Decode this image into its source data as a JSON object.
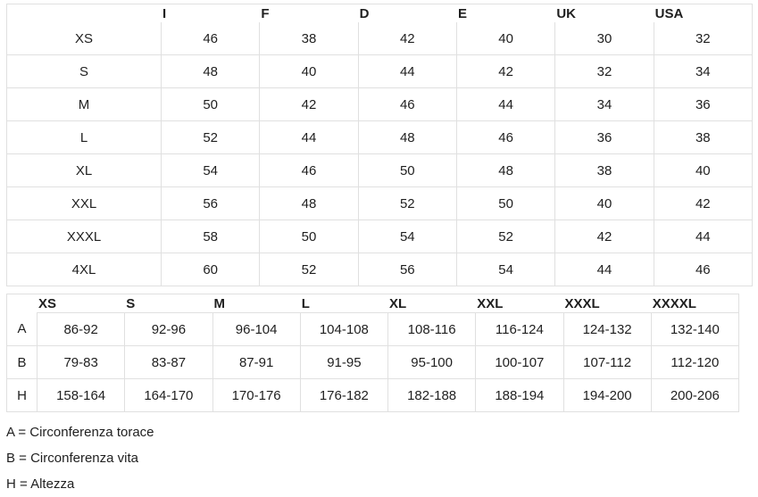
{
  "table1": {
    "columns": [
      "",
      "I",
      "F",
      "D",
      "E",
      "UK",
      "USA"
    ],
    "rows": [
      {
        "label": "XS",
        "values": [
          "46",
          "38",
          "42",
          "40",
          "30",
          "32"
        ]
      },
      {
        "label": "S",
        "values": [
          "48",
          "40",
          "44",
          "42",
          "32",
          "34"
        ]
      },
      {
        "label": "M",
        "values": [
          "50",
          "42",
          "46",
          "44",
          "34",
          "36"
        ]
      },
      {
        "label": "L",
        "values": [
          "52",
          "44",
          "48",
          "46",
          "36",
          "38"
        ]
      },
      {
        "label": "XL",
        "values": [
          "54",
          "46",
          "50",
          "48",
          "38",
          "40"
        ]
      },
      {
        "label": "XXL",
        "values": [
          "56",
          "48",
          "52",
          "50",
          "40",
          "42"
        ]
      },
      {
        "label": "XXXL",
        "values": [
          "58",
          "50",
          "54",
          "52",
          "42",
          "44"
        ]
      },
      {
        "label": "4XL",
        "values": [
          "60",
          "52",
          "56",
          "54",
          "44",
          "46"
        ]
      }
    ]
  },
  "table2": {
    "columns": [
      "",
      "XS",
      "S",
      "M",
      "L",
      "XL",
      "XXL",
      "XXXL",
      "XXXXL"
    ],
    "rows": [
      {
        "label": "A",
        "values": [
          "86-92",
          "92-96",
          "96-104",
          "104-108",
          "108-116",
          "116-124",
          "124-132",
          "132-140"
        ]
      },
      {
        "label": "B",
        "values": [
          "79-83",
          "83-87",
          "87-91",
          "91-95",
          "95-100",
          "100-107",
          "107-112",
          "112-120"
        ]
      },
      {
        "label": "H",
        "values": [
          "158-164",
          "164-170",
          "170-176",
          "176-182",
          "182-188",
          "188-194",
          "194-200",
          "200-206"
        ]
      }
    ]
  },
  "legend": [
    "A = Circonferenza torace",
    "B = Circonferenza vita",
    "H = Altezza"
  ],
  "colors": {
    "border": "#e0e0e0",
    "text": "#1f1f1f",
    "background": "#ffffff"
  }
}
